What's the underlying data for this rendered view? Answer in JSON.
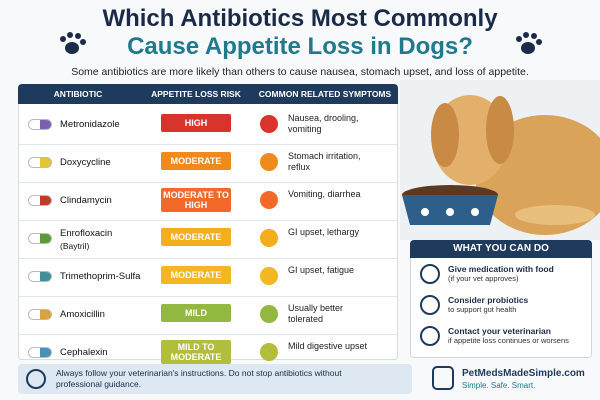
{
  "header": {
    "title_lines": [
      "Which Antibiotics Most Commonly",
      "Cause Appetite Loss in Dogs?"
    ],
    "subtitle": "Some antibiotics are more likely than others to cause nausea, stomach upset, and loss of appetite."
  },
  "table": {
    "columns": [
      "ANTIBIOTIC",
      "APPETITE LOSS RISK",
      "COMMON RELATED SYMPTOMS"
    ],
    "rows": [
      {
        "name": "Metronidazole",
        "risk": "HIGH",
        "symptoms": "Nausea, drooling, vomiting",
        "color": "#d9342b",
        "pill_color": "#7a5fb0"
      },
      {
        "name": "Doxycycline",
        "risk": "MODERATE",
        "symptoms": "Stomach irritation, reflux",
        "color": "#f08a1c",
        "pill_color": "#e7c33a"
      },
      {
        "name": "Clindamycin",
        "risk": "MODERATE TO HIGH",
        "symptoms": "Vomiting, diarrhea",
        "color": "#f2692a",
        "pill_color": "#c0392b"
      },
      {
        "name": "Enrofloxacin",
        "note": "(Baytril)",
        "risk": "MODERATE",
        "symptoms": "GI upset, lethargy",
        "color": "#f4ad1e",
        "pill_color": "#5a9a3a"
      },
      {
        "name": "Trimethoprim-Sulfa",
        "risk": "MODERATE",
        "symptoms": "GI upset, fatigue",
        "color": "#f4b623",
        "pill_color": "#3f8f9a"
      },
      {
        "name": "Amoxicillin",
        "risk": "MILD",
        "symptoms": "Usually better tolerated",
        "color": "#93b842",
        "pill_color": "#d9a23a"
      },
      {
        "name": "Cephalexin",
        "risk": "MILD TO MODERATE",
        "symptoms": "Mild digestive upset",
        "color": "#b3bd3c",
        "pill_color": "#4a8fb5"
      }
    ]
  },
  "panel": {
    "title": "WHAT YOU CAN DO",
    "items": [
      {
        "title": "Give medication with food",
        "detail": "(if your vet approves)"
      },
      {
        "title": "Consider probiotics",
        "detail": "to support gut health"
      },
      {
        "title": "Contact your veterinarian",
        "detail": "if appetite loss continues or worsens"
      }
    ]
  },
  "footer": {
    "note": "Always follow your veterinarian's instructions. Do not stop antibiotics without professional guidance.",
    "brand": "PetMedsMadeSimple.com",
    "tagline": "Simple. Safe. Smart."
  }
}
